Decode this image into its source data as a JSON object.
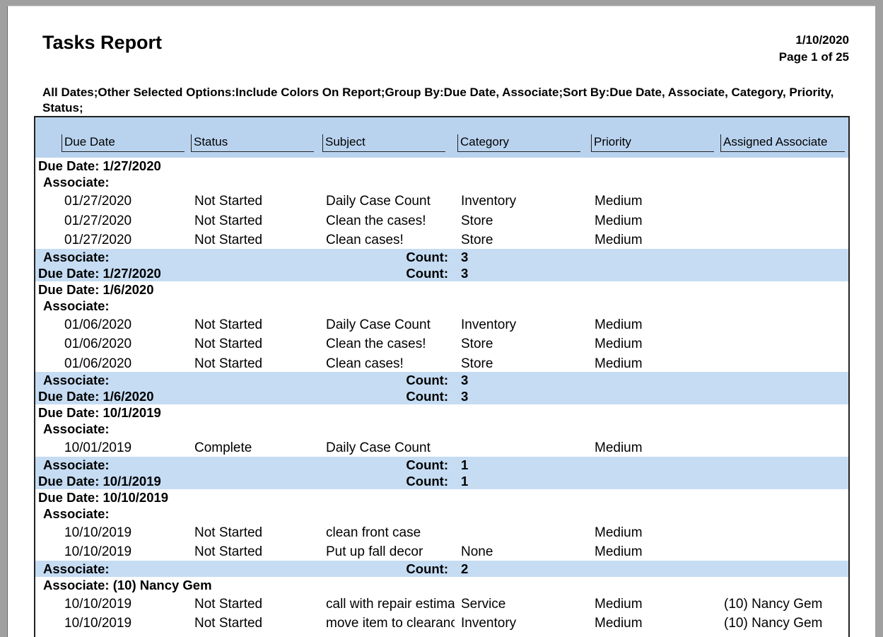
{
  "header": {
    "title": "Tasks Report",
    "date": "1/10/2020",
    "page": "Page 1 of 25",
    "options": "All Dates;Other Selected Options:Include Colors On Report;Group By:Due Date, Associate;Sort By:Due Date, Associate, Category, Priority, Status;"
  },
  "columns": [
    "Due Date",
    "Status",
    "Subject",
    "Category",
    "Priority",
    "Assigned Associate"
  ],
  "groups": [
    {
      "label": "Due Date: 1/27/2020",
      "associates": [
        {
          "label": "Associate:",
          "rows": [
            {
              "due_date": "01/27/2020",
              "status": "Not Started",
              "subject": "Daily Case Count",
              "category": "Inventory",
              "priority": "Medium"
            },
            {
              "due_date": "01/27/2020",
              "status": "Not Started",
              "subject": "Clean the cases!",
              "category": "Store",
              "priority": "Medium"
            },
            {
              "due_date": "01/27/2020",
              "status": "Not Started",
              "subject": "Clean cases!",
              "category": "Store",
              "priority": "Medium"
            }
          ],
          "footer": {
            "label": "Associate:",
            "count_label": "Count:",
            "count": "3"
          }
        }
      ],
      "footer": {
        "label": "Due Date: 1/27/2020",
        "count_label": "Count:",
        "count": "3"
      }
    },
    {
      "label": "Due Date: 1/6/2020",
      "associates": [
        {
          "label": "Associate:",
          "rows": [
            {
              "due_date": "01/06/2020",
              "status": "Not Started",
              "subject": "Daily Case Count",
              "category": "Inventory",
              "priority": "Medium"
            },
            {
              "due_date": "01/06/2020",
              "status": "Not Started",
              "subject": "Clean the cases!",
              "category": "Store",
              "priority": "Medium"
            },
            {
              "due_date": "01/06/2020",
              "status": "Not Started",
              "subject": "Clean cases!",
              "category": "Store",
              "priority": "Medium"
            }
          ],
          "footer": {
            "label": "Associate:",
            "count_label": "Count:",
            "count": "3"
          }
        }
      ],
      "footer": {
        "label": "Due Date: 1/6/2020",
        "count_label": "Count:",
        "count": "3"
      }
    },
    {
      "label": "Due Date: 10/1/2019",
      "associates": [
        {
          "label": "Associate:",
          "rows": [
            {
              "due_date": "10/01/2019",
              "status": "Complete",
              "subject": "Daily Case Count",
              "priority": "Medium"
            }
          ],
          "footer": {
            "label": "Associate:",
            "count_label": "Count:",
            "count": "1"
          }
        }
      ],
      "footer": {
        "label": "Due Date: 10/1/2019",
        "count_label": "Count:",
        "count": "1"
      }
    },
    {
      "label": "Due Date: 10/10/2019",
      "associates": [
        {
          "label": "Associate:",
          "rows": [
            {
              "due_date": "10/10/2019",
              "status": "Not Started",
              "subject": "clean front case",
              "priority": "Medium"
            },
            {
              "due_date": "10/10/2019",
              "status": "Not Started",
              "subject": "Put up fall decor",
              "category": "None",
              "priority": "Medium"
            }
          ],
          "footer": {
            "label": "Associate:",
            "count_label": "Count:",
            "count": "2"
          }
        },
        {
          "label": "Associate: (10) Nancy Gem",
          "rows": [
            {
              "due_date": "10/10/2019",
              "status": "Not Started",
              "subject": "call with repair estimate",
              "category": "Service",
              "priority": "Medium",
              "associate": "(10) Nancy Gem"
            },
            {
              "due_date": "10/10/2019",
              "status": "Not Started",
              "subject": "move item to clearance",
              "category": "Inventory",
              "priority": "Medium",
              "associate": "(10) Nancy Gem"
            }
          ]
        }
      ]
    }
  ]
}
